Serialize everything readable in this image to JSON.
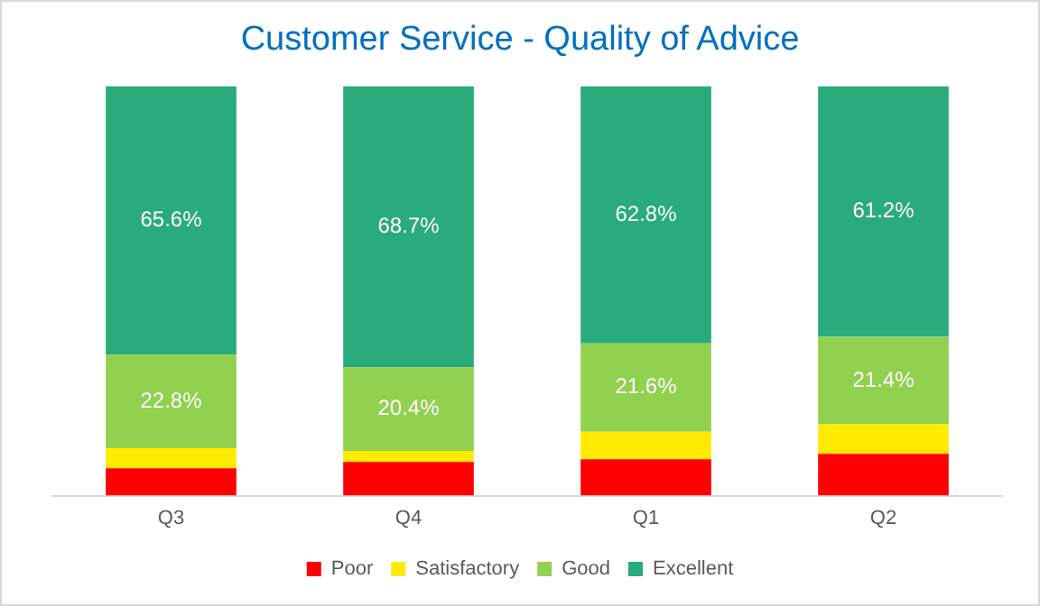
{
  "chart_data": {
    "type": "bar",
    "title": "Customer Service - Quality of Advice",
    "categories": [
      "Q3",
      "Q4",
      "Q1",
      "Q2"
    ],
    "stacked": true,
    "ylim": [
      0,
      100
    ],
    "tick_labels": "x",
    "grid": false,
    "legend": "bottom",
    "series": [
      {
        "name": "Poor",
        "color": "#ff0000",
        "values": [
          6.7,
          8.2,
          8.9,
          10.2
        ],
        "value_labels": [
          null,
          null,
          null,
          null
        ]
      },
      {
        "name": "Satisfactory",
        "color": "#ffeb00",
        "values": [
          4.9,
          2.7,
          6.7,
          7.2
        ],
        "value_labels": [
          null,
          null,
          null,
          null
        ]
      },
      {
        "name": "Good",
        "color": "#92d050",
        "values": [
          22.8,
          20.4,
          21.6,
          21.4
        ],
        "value_labels": [
          "22.8%",
          "20.4%",
          "21.6%",
          "21.4%"
        ]
      },
      {
        "name": "Excellent",
        "color": "#2aab7b",
        "values": [
          65.6,
          68.7,
          62.8,
          61.2
        ],
        "value_labels": [
          "65.6%",
          "68.7%",
          "62.8%",
          "61.2%"
        ]
      }
    ]
  }
}
